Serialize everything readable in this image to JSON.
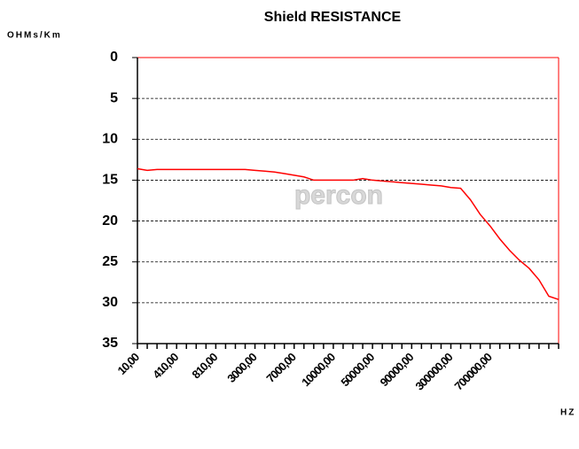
{
  "chart_data": {
    "type": "line",
    "title": "Shield RESISTANCE",
    "y_label": "OHMs/Km",
    "x_label": "HZ",
    "watermark": "percon",
    "categories": [
      "10,00",
      null,
      null,
      null,
      "410,00",
      null,
      null,
      null,
      "810,00",
      null,
      null,
      null,
      "3000,00",
      null,
      null,
      null,
      "7000,00",
      null,
      null,
      null,
      "10000,00",
      null,
      null,
      null,
      "50000,00",
      null,
      null,
      null,
      "90000,00",
      null,
      null,
      null,
      "300000,00",
      null,
      null,
      null,
      "700000,00",
      null,
      null,
      null,
      null,
      null,
      null,
      null
    ],
    "series": [
      {
        "name": "Shield resistance",
        "color": "#ff0000",
        "values": [
          13.6,
          13.8,
          13.7,
          13.7,
          13.7,
          13.7,
          13.7,
          13.7,
          13.7,
          13.7,
          13.7,
          13.7,
          13.8,
          13.9,
          14.0,
          14.2,
          14.4,
          14.6,
          15.0,
          15.0,
          15.0,
          15.0,
          15.0,
          14.8,
          15.0,
          15.1,
          15.2,
          15.3,
          15.4,
          15.5,
          15.6,
          15.7,
          15.9,
          16.0,
          17.4,
          19.2,
          20.6,
          22.2,
          23.6,
          24.8,
          25.8,
          27.2,
          29.2,
          29.6
        ]
      }
    ],
    "ylim": [
      0,
      35
    ],
    "yticks": [
      0,
      5,
      10,
      15,
      20,
      25,
      30,
      35
    ],
    "y_inverted": true,
    "grid": true
  }
}
